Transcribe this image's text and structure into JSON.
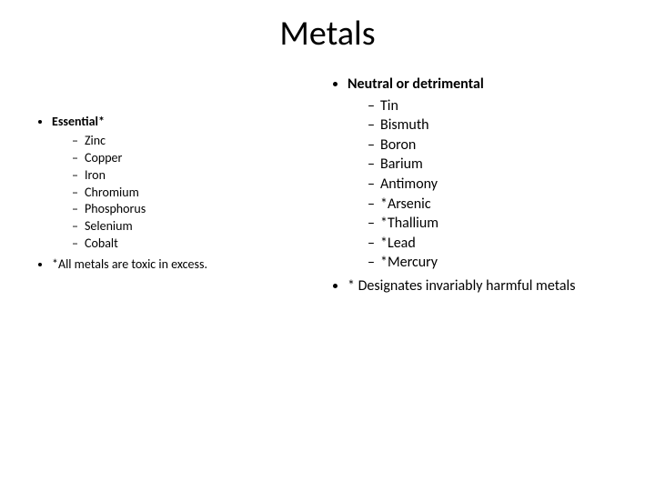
{
  "title": "Metals",
  "left": {
    "heading": "Essential*",
    "items": [
      "Zinc",
      "Copper",
      "Iron",
      "Chromium",
      "Phosphorus",
      "Selenium",
      "Cobalt"
    ],
    "note": "*All metals are toxic in excess."
  },
  "right": {
    "heading": "Neutral or detrimental",
    "items": [
      "Tin",
      "Bismuth",
      "Boron",
      "Barium",
      "Antimony",
      "*Arsenic",
      "*Thallium",
      "*Lead",
      "*Mercury"
    ],
    "note": "* Designates invariably harmful metals"
  },
  "colors": {
    "text": "#000000",
    "background": "#ffffff"
  },
  "typography": {
    "title_fontsize": 38,
    "left_fontsize": 14,
    "right_fontsize": 16,
    "font_family": "Calibri"
  }
}
